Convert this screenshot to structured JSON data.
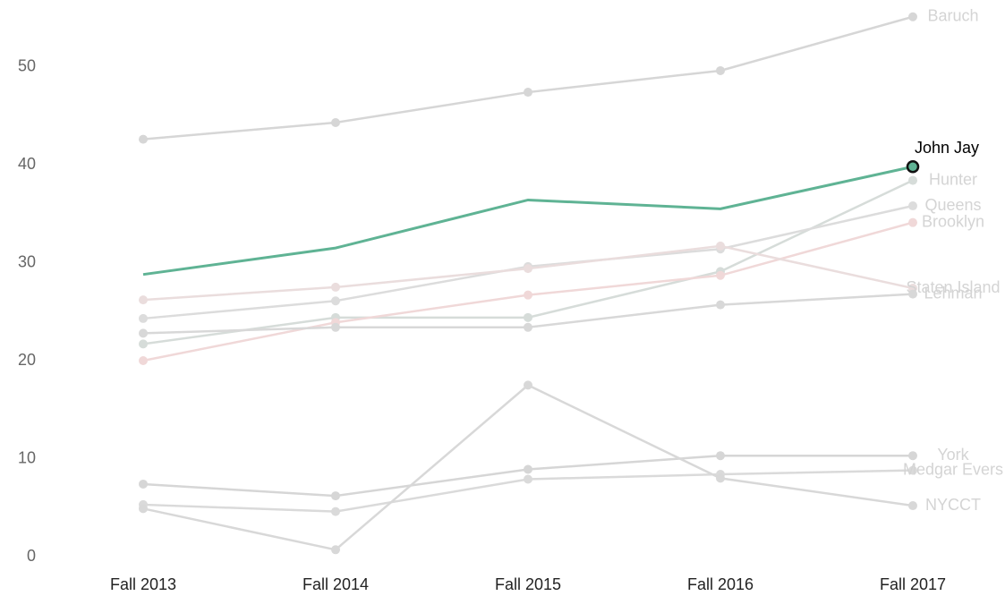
{
  "chart_data": {
    "type": "line",
    "categories": [
      "Fall 2013",
      "Fall 2014",
      "Fall 2015",
      "Fall 2016",
      "Fall 2017"
    ],
    "ylim": [
      0,
      57
    ],
    "yticks": [
      0,
      10,
      20,
      30,
      40,
      50
    ],
    "highlight": "John Jay",
    "series": [
      {
        "name": "Baruch",
        "color": "#d6d6d6",
        "values": [
          43.7,
          45.4,
          48.5,
          50.7,
          56.2
        ]
      },
      {
        "name": "Hunter",
        "color": "#d6dcd9",
        "values": [
          22.8,
          25.5,
          25.5,
          30.2,
          39.5
        ]
      },
      {
        "name": "Queens",
        "color": "#dcdcdc",
        "values": [
          25.4,
          27.2,
          30.7,
          32.5,
          36.9
        ]
      },
      {
        "name": "Brooklyn",
        "color": "#f0d8d8",
        "values": [
          21.1,
          25.0,
          27.8,
          29.8,
          35.2
        ]
      },
      {
        "name": "Staten Island",
        "color": "#eadddd",
        "values": [
          27.3,
          28.6,
          30.5,
          32.8,
          28.5
        ]
      },
      {
        "name": "Lehman",
        "color": "#d8d8d8",
        "values": [
          23.9,
          24.5,
          24.5,
          26.8,
          27.9
        ]
      },
      {
        "name": "York",
        "color": "#d6d6d6",
        "values": [
          8.5,
          7.3,
          10.0,
          11.4,
          11.4
        ]
      },
      {
        "name": "Medgar Evers",
        "color": "#dadada",
        "values": [
          6.4,
          5.7,
          9.0,
          9.5,
          9.9
        ]
      },
      {
        "name": "NYCCT",
        "color": "#d8d8d8",
        "values": [
          6.0,
          1.8,
          18.6,
          9.1,
          6.3
        ]
      },
      {
        "name": "John Jay",
        "color": "#5fb394",
        "values": [
          29.9,
          32.6,
          37.5,
          36.6,
          40.9
        ]
      }
    ]
  }
}
